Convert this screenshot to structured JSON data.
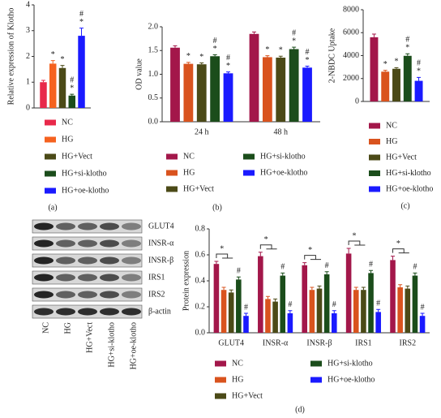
{
  "chart_data": [
    {
      "type": "bar",
      "panel_label": "(a)",
      "y_label": "Relative expression of Klotho",
      "categories": [
        null
      ],
      "ylim": [
        0,
        4
      ],
      "yticks": [
        0,
        1,
        2,
        3,
        4
      ],
      "series": [
        {
          "name": "NC",
          "color": "#e8294a",
          "values": [
            1.0
          ],
          "errors": [
            0.07
          ],
          "annotations": [
            []
          ]
        },
        {
          "name": "HG",
          "color": "#f5621f",
          "values": [
            1.72
          ],
          "errors": [
            0.12
          ],
          "annotations": [
            [
              "*"
            ]
          ]
        },
        {
          "name": "HG+Vect",
          "color": "#4b4a17",
          "values": [
            1.55
          ],
          "errors": [
            0.1
          ],
          "annotations": [
            [
              "*"
            ]
          ]
        },
        {
          "name": "HG+si-klotho",
          "color": "#1b4d1b",
          "values": [
            0.48
          ],
          "errors": [
            0.05
          ],
          "annotations": [
            [
              "#",
              "*"
            ]
          ]
        },
        {
          "name": "HG+oe-klotho",
          "color": "#1a1aff",
          "values": [
            2.8
          ],
          "errors": [
            0.3
          ],
          "annotations": [
            [
              "#",
              "*"
            ]
          ]
        }
      ]
    },
    {
      "type": "bar",
      "panel_label": "(b)",
      "y_label": "OD value",
      "categories": [
        "24 h",
        "48 h"
      ],
      "ylim": [
        0,
        2.0
      ],
      "yticks": [
        {
          "value": 0,
          "label": "0.0"
        },
        {
          "value": 0.5,
          "label": "0.5"
        },
        {
          "value": 1,
          "label": "1.0"
        },
        {
          "value": 1.5,
          "label": "1.5"
        },
        {
          "value": 2,
          "label": "2.0"
        }
      ],
      "series": [
        {
          "name": "NC",
          "color": "#a3174a",
          "values": [
            1.56,
            1.85
          ],
          "errors": [
            0.04,
            0.04
          ],
          "annotations": [
            [],
            []
          ]
        },
        {
          "name": "HG",
          "color": "#d9531e",
          "values": [
            1.22,
            1.36
          ],
          "errors": [
            0.03,
            0.03
          ],
          "annotations": [
            [
              "*"
            ],
            [
              "*"
            ]
          ]
        },
        {
          "name": "HG+Vect",
          "color": "#4b4a17",
          "values": [
            1.21,
            1.35
          ],
          "errors": [
            0.03,
            0.03
          ],
          "annotations": [
            [
              "*"
            ],
            [
              "*"
            ]
          ]
        },
        {
          "name": "HG+si-klotho",
          "color": "#1b4d1b",
          "values": [
            1.38,
            1.53
          ],
          "errors": [
            0.03,
            0.04
          ],
          "annotations": [
            [
              "#",
              "*"
            ],
            [
              "#",
              "*"
            ]
          ]
        },
        {
          "name": "HG+oe-klotho",
          "color": "#1a1aff",
          "values": [
            1.02,
            1.14
          ],
          "errors": [
            0.03,
            0.03
          ],
          "annotations": [
            [
              "#",
              "*"
            ],
            [
              "#",
              "*"
            ]
          ]
        }
      ]
    },
    {
      "type": "bar",
      "panel_label": "(c)",
      "y_label": "2-NBDC Uptake",
      "categories": [
        null
      ],
      "ylim": [
        0,
        8000
      ],
      "yticks": [
        0,
        2000,
        4000,
        6000,
        8000
      ],
      "series": [
        {
          "name": "NC",
          "color": "#a3174a",
          "values": [
            5600
          ],
          "errors": [
            280
          ],
          "annotations": [
            []
          ]
        },
        {
          "name": "HG",
          "color": "#d9531e",
          "values": [
            2600
          ],
          "errors": [
            120
          ],
          "annotations": [
            [
              "*"
            ]
          ]
        },
        {
          "name": "HG+Vect",
          "color": "#4b4a17",
          "values": [
            2850
          ],
          "errors": [
            100
          ],
          "annotations": [
            [
              "*"
            ]
          ]
        },
        {
          "name": "HG+si-klotho",
          "color": "#1b4d1b",
          "values": [
            3980
          ],
          "errors": [
            180
          ],
          "annotations": [
            [
              "#",
              "*"
            ]
          ]
        },
        {
          "name": "HG+oe-klotho",
          "color": "#1a1aff",
          "values": [
            1800
          ],
          "errors": [
            300
          ],
          "annotations": [
            [
              "#",
              "*"
            ]
          ]
        }
      ]
    },
    {
      "type": "bar",
      "panel_label": "(d)",
      "y_label": "Protein expression",
      "categories": [
        "GLUT4",
        "INSR-α",
        "INSR-β",
        "IRS1",
        "IRS2"
      ],
      "ylim": [
        0,
        0.8
      ],
      "yticks": [
        {
          "value": 0,
          "label": "0.0"
        },
        {
          "value": 0.2,
          "label": "0.2"
        },
        {
          "value": 0.4,
          "label": "0.4"
        },
        {
          "value": 0.6,
          "label": "0.6"
        },
        {
          "value": 0.8,
          "label": "0.8"
        }
      ],
      "bracket_labels": [
        "*",
        "*",
        "*",
        "*",
        "*"
      ],
      "series": [
        {
          "name": "NC",
          "color": "#a3174a",
          "values": [
            0.53,
            0.59,
            0.52,
            0.61,
            0.56
          ],
          "errors": [
            0.02,
            0.03,
            0.02,
            0.04,
            0.03
          ],
          "annotations": [
            [],
            [],
            [],
            [],
            []
          ]
        },
        {
          "name": "HG",
          "color": "#d9531e",
          "values": [
            0.33,
            0.26,
            0.33,
            0.33,
            0.35
          ],
          "errors": [
            0.02,
            0.02,
            0.02,
            0.02,
            0.02
          ],
          "annotations": [
            [],
            [],
            [],
            [],
            []
          ]
        },
        {
          "name": "HG+Vect",
          "color": "#4b4a17",
          "values": [
            0.31,
            0.24,
            0.34,
            0.33,
            0.34
          ],
          "errors": [
            0.02,
            0.02,
            0.02,
            0.02,
            0.02
          ],
          "annotations": [
            [],
            [],
            [],
            [],
            []
          ]
        },
        {
          "name": "HG+si-klotho",
          "color": "#1b4d1b",
          "values": [
            0.41,
            0.44,
            0.45,
            0.46,
            0.44
          ],
          "errors": [
            0.02,
            0.02,
            0.02,
            0.02,
            0.02
          ],
          "annotations": [
            [
              "#"
            ],
            [
              "#"
            ],
            [
              "#"
            ],
            [
              "#"
            ],
            [
              "#"
            ]
          ]
        },
        {
          "name": "HG+oe-klotho",
          "color": "#1a1aff",
          "values": [
            0.13,
            0.15,
            0.15,
            0.16,
            0.13
          ],
          "errors": [
            0.02,
            0.02,
            0.02,
            0.02,
            0.02
          ],
          "annotations": [
            [
              "#"
            ],
            [
              "#"
            ],
            [
              "#"
            ],
            [
              "#"
            ],
            [
              "#"
            ]
          ]
        }
      ]
    }
  ],
  "blot": {
    "rows": [
      "GLUT4",
      "INSR-α",
      "INSR-β",
      "IRS1",
      "IRS2",
      "β-actin"
    ],
    "lanes": [
      "NC",
      "HG",
      "HG+Vect",
      "HG+si-klotho",
      "HG+oe-klotho"
    ]
  }
}
